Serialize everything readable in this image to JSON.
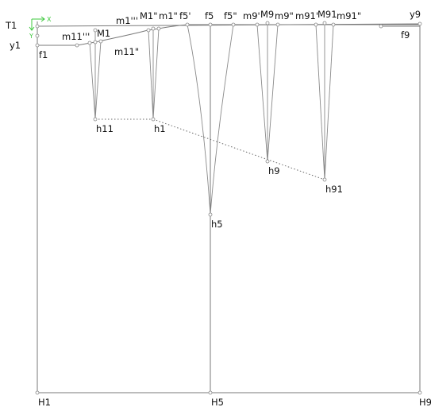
{
  "axes": {
    "x_label": "X",
    "y_label": "Y",
    "color": "#3cc83c"
  },
  "labels": {
    "T1": "T1",
    "y1": "y1",
    "f1": "f1",
    "m11p3": "m11'''",
    "M1": "M1",
    "m11p2": "m11\"",
    "m1p3": "m1'''",
    "M1p2": "M1\"",
    "m1p2": "m1\"",
    "f5p": "f5'",
    "f5": "f5",
    "f5p2": "f5\"",
    "m9p": "m9'",
    "M9": "M9",
    "m9p2": "m9\"",
    "m91p": "m91'",
    "M91": "M91",
    "m91p2": "m91\"",
    "y9": "y9",
    "f9": "f9",
    "h11": "h11",
    "h1": "h1",
    "h9": "h9",
    "h91": "h91",
    "h5": "h5",
    "H1": "H1",
    "H5": "H5",
    "H9": "H9"
  }
}
